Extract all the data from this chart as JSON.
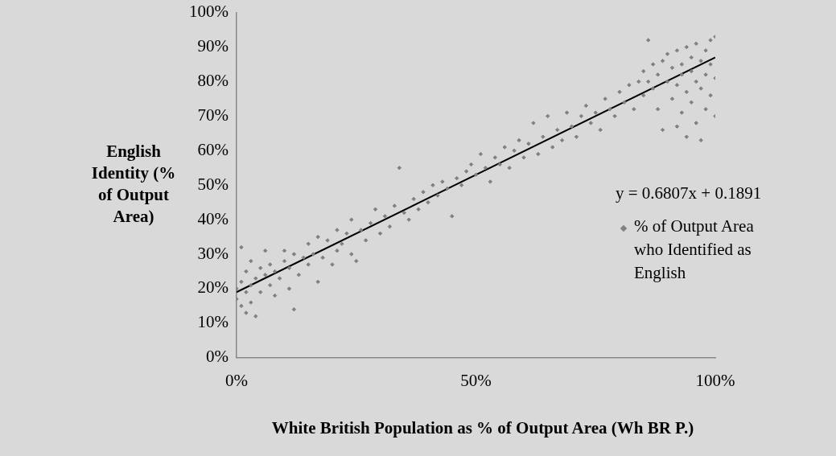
{
  "chart_data": {
    "type": "scatter",
    "xlabel": "White British Population as % of Output Area  (Wh BR P.)",
    "ylabel": "English Identity (% of Output Area)",
    "xlim": [
      0,
      1
    ],
    "xticks": [
      {
        "value": 0,
        "label": "0%"
      },
      {
        "value": 0.5,
        "label": "50%"
      },
      {
        "value": 1,
        "label": "100%"
      }
    ],
    "ylim": [
      0,
      1
    ],
    "yticks": [
      {
        "value": 0,
        "label": "0%"
      },
      {
        "value": 0.1,
        "label": "10%"
      },
      {
        "value": 0.2,
        "label": "20%"
      },
      {
        "value": 0.3,
        "label": "30%"
      },
      {
        "value": 0.4,
        "label": "40%"
      },
      {
        "value": 0.5,
        "label": "50%"
      },
      {
        "value": 0.6,
        "label": "60%"
      },
      {
        "value": 0.7,
        "label": "70%"
      },
      {
        "value": 0.8,
        "label": "80%"
      },
      {
        "value": 0.9,
        "label": "90%"
      },
      {
        "value": 1,
        "label": "100%"
      }
    ],
    "grid": false,
    "legend": "right",
    "annotations": [
      "y = 0.6807x + 0.1891"
    ],
    "series": [
      {
        "name": "% of Output Area who Identified as English",
        "type": "scatter",
        "marker": "diamond",
        "color": "#808080",
        "x": [
          0,
          0,
          0.01,
          0.01,
          0.01,
          0.02,
          0.02,
          0.02,
          0.03,
          0.03,
          0.03,
          0.04,
          0.04,
          0.05,
          0.05,
          0.06,
          0.06,
          0.07,
          0.07,
          0.08,
          0.08,
          0.09,
          0.1,
          0.1,
          0.11,
          0.11,
          0.12,
          0.12,
          0.13,
          0.14,
          0.15,
          0.15,
          0.16,
          0.17,
          0.17,
          0.18,
          0.19,
          0.2,
          0.21,
          0.21,
          0.22,
          0.23,
          0.24,
          0.24,
          0.25,
          0.26,
          0.27,
          0.28,
          0.29,
          0.3,
          0.31,
          0.32,
          0.33,
          0.34,
          0.35,
          0.36,
          0.37,
          0.38,
          0.39,
          0.4,
          0.41,
          0.42,
          0.43,
          0.44,
          0.45,
          0.46,
          0.47,
          0.48,
          0.49,
          0.5,
          0.51,
          0.52,
          0.53,
          0.54,
          0.55,
          0.56,
          0.57,
          0.58,
          0.59,
          0.6,
          0.61,
          0.62,
          0.63,
          0.64,
          0.65,
          0.66,
          0.67,
          0.68,
          0.69,
          0.7,
          0.71,
          0.72,
          0.73,
          0.74,
          0.75,
          0.76,
          0.77,
          0.78,
          0.79,
          0.8,
          0.81,
          0.82,
          0.83,
          0.84,
          0.85,
          0.85,
          0.86,
          0.86,
          0.87,
          0.87,
          0.88,
          0.88,
          0.89,
          0.89,
          0.9,
          0.9,
          0.91,
          0.91,
          0.92,
          0.92,
          0.92,
          0.93,
          0.93,
          0.93,
          0.94,
          0.94,
          0.94,
          0.95,
          0.95,
          0.95,
          0.96,
          0.96,
          0.96,
          0.97,
          0.97,
          0.97,
          0.98,
          0.98,
          0.98,
          0.99,
          0.99,
          0.99,
          1,
          1,
          1
        ],
        "values": [
          0.2,
          0.17,
          0.22,
          0.15,
          0.32,
          0.19,
          0.13,
          0.25,
          0.21,
          0.16,
          0.28,
          0.23,
          0.12,
          0.19,
          0.26,
          0.24,
          0.31,
          0.21,
          0.27,
          0.18,
          0.25,
          0.23,
          0.28,
          0.31,
          0.2,
          0.26,
          0.3,
          0.14,
          0.24,
          0.29,
          0.27,
          0.33,
          0.3,
          0.22,
          0.35,
          0.29,
          0.34,
          0.27,
          0.31,
          0.37,
          0.33,
          0.36,
          0.3,
          0.4,
          0.28,
          0.37,
          0.34,
          0.39,
          0.43,
          0.36,
          0.41,
          0.38,
          0.44,
          0.55,
          0.42,
          0.4,
          0.46,
          0.43,
          0.48,
          0.45,
          0.5,
          0.47,
          0.51,
          0.49,
          0.41,
          0.52,
          0.5,
          0.54,
          0.56,
          0.53,
          0.59,
          0.55,
          0.51,
          0.58,
          0.56,
          0.61,
          0.55,
          0.6,
          0.63,
          0.58,
          0.62,
          0.68,
          0.59,
          0.64,
          0.7,
          0.61,
          0.66,
          0.63,
          0.71,
          0.67,
          0.64,
          0.7,
          0.73,
          0.68,
          0.71,
          0.66,
          0.75,
          0.72,
          0.7,
          0.77,
          0.74,
          0.79,
          0.72,
          0.8,
          0.83,
          0.76,
          0.92,
          0.8,
          0.85,
          0.78,
          0.82,
          0.72,
          0.86,
          0.66,
          0.8,
          0.88,
          0.84,
          0.75,
          0.89,
          0.79,
          0.67,
          0.85,
          0.82,
          0.71,
          0.9,
          0.77,
          0.64,
          0.87,
          0.83,
          0.74,
          0.91,
          0.8,
          0.68,
          0.86,
          0.78,
          0.63,
          0.89,
          0.82,
          0.72,
          0.92,
          0.85,
          0.76,
          0.93,
          0.81,
          0.7
        ]
      },
      {
        "type": "line",
        "marker": "none",
        "color": "#000000",
        "x": [
          0,
          1
        ],
        "values": [
          0.19,
          0.87
        ]
      }
    ]
  }
}
